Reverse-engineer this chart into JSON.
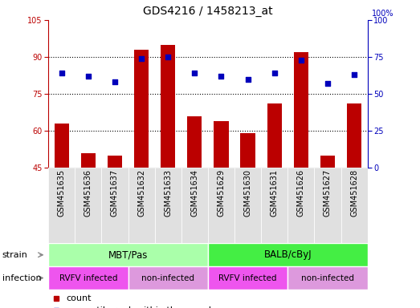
{
  "title": "GDS4216 / 1458213_at",
  "samples": [
    "GSM451635",
    "GSM451636",
    "GSM451637",
    "GSM451632",
    "GSM451633",
    "GSM451634",
    "GSM451629",
    "GSM451630",
    "GSM451631",
    "GSM451626",
    "GSM451627",
    "GSM451628"
  ],
  "bar_values": [
    63,
    51,
    50,
    93,
    95,
    66,
    64,
    59,
    71,
    92,
    50,
    71
  ],
  "pct_right": [
    64,
    62,
    58,
    74,
    75,
    64,
    62,
    60,
    64,
    73,
    57,
    63
  ],
  "ylim_left": [
    45,
    105
  ],
  "ylim_right": [
    0,
    100
  ],
  "yticks_left": [
    45,
    60,
    75,
    90,
    105
  ],
  "yticks_right": [
    0,
    25,
    50,
    75,
    100
  ],
  "bar_color": "#bb0000",
  "dot_color": "#0000bb",
  "grid_color": "#000000",
  "strain_labels": [
    "MBT/Pas",
    "BALB/cByJ"
  ],
  "strain_mbt_color": "#aaffaa",
  "strain_balb_color": "#44ee44",
  "infection_labels": [
    "RVFV infected",
    "non-infected",
    "RVFV infected",
    "non-infected"
  ],
  "infection_rvfv_color": "#ee55ee",
  "infection_noninfected_color": "#dd99dd",
  "legend_count_color": "#bb0000",
  "legend_pct_color": "#0000bb",
  "title_fontsize": 10,
  "tick_fontsize": 7,
  "annotation_fontsize": 8,
  "legend_fontsize": 8
}
